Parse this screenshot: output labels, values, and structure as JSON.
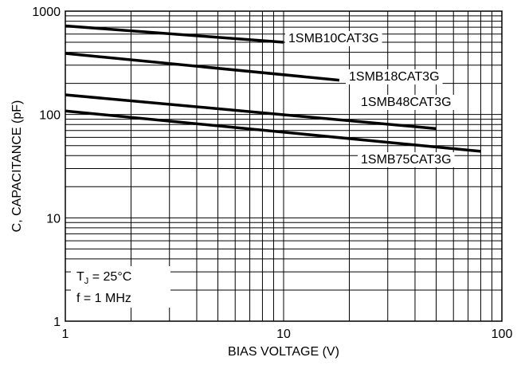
{
  "chart_data": {
    "type": "line",
    "xscale": "log",
    "yscale": "log",
    "xlim": [
      1,
      100
    ],
    "ylim": [
      1,
      1000
    ],
    "xlabel": "BIAS VOLTAGE (V)",
    "ylabel": "C, CAPACITANCE (pF)",
    "xticks": [
      "1",
      "10",
      "100"
    ],
    "yticks": [
      "1",
      "10",
      "100",
      "1000"
    ],
    "grid": true,
    "series": [
      {
        "name": "1SMB10CAT3G",
        "x": [
          1,
          10
        ],
        "y": [
          720,
          500
        ]
      },
      {
        "name": "1SMB18CAT3G",
        "x": [
          1,
          18
        ],
        "y": [
          390,
          215
        ]
      },
      {
        "name": "1SMB48CAT3G",
        "x": [
          1,
          50
        ],
        "y": [
          155,
          73
        ]
      },
      {
        "name": "1SMB75CAT3G",
        "x": [
          1,
          80
        ],
        "y": [
          108,
          44
        ]
      }
    ],
    "annotations": {
      "tj_prefix": "T",
      "tj_subscript": "J",
      "tj_value": " = 25°C",
      "freq": "f = 1 MHz"
    }
  }
}
